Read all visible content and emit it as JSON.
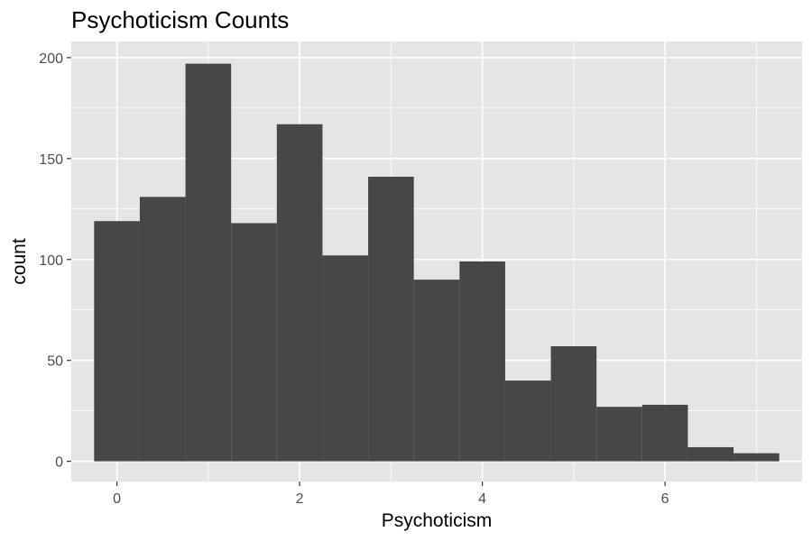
{
  "chart_data": {
    "type": "bar",
    "title": "Psychoticism Counts",
    "xlabel": "Psychoticism",
    "ylabel": "count",
    "binwidth": 0.5,
    "bin_centers": [
      0,
      0.5,
      1,
      1.5,
      2,
      2.5,
      3,
      3.5,
      4,
      4.5,
      5,
      5.5,
      6,
      6.5,
      7
    ],
    "values": [
      119,
      131,
      197,
      118,
      167,
      102,
      141,
      90,
      99,
      40,
      57,
      27,
      28,
      7,
      4
    ],
    "xlim": [
      -0.5,
      7.5
    ],
    "ylim": [
      -10,
      208
    ],
    "x_ticks": [
      0,
      2,
      4,
      6
    ],
    "y_ticks": [
      0,
      50,
      100,
      150,
      200
    ],
    "grid": true,
    "colors": {
      "panel": "#e5e5e5",
      "bar": "#474747",
      "grid": "#ffffff",
      "tick": "#333333"
    }
  }
}
